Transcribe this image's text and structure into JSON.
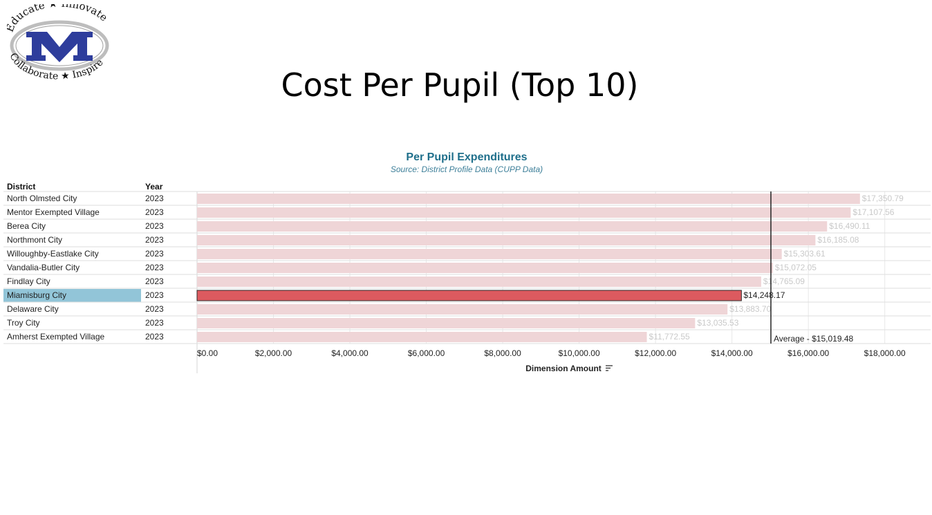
{
  "page": {
    "title": "Cost Per Pupil (Top 10)"
  },
  "logo": {
    "top_text": "Educate",
    "top_text2": "Innovate",
    "bottom_text": "Collaborate",
    "bottom_text2": "Inspire",
    "letter": "M",
    "colors": {
      "blue": "#2e3d9c",
      "gray": "#bdbdbd"
    }
  },
  "chart_data": {
    "type": "bar",
    "title": "Per Pupil Expenditures",
    "subtitle": "Source: District Profile Data (CUPP Data)",
    "column_headers": {
      "district": "District",
      "year": "Year"
    },
    "categories": [
      "North Olmsted City",
      "Mentor Exempted Village",
      "Berea City",
      "Northmont City",
      "Willoughby-Eastlake City",
      "Vandalia-Butler City",
      "Findlay City",
      "Miamisburg City",
      "Delaware City",
      "Troy City",
      "Amherst Exempted Village"
    ],
    "years": [
      "2023",
      "2023",
      "2023",
      "2023",
      "2023",
      "2023",
      "2023",
      "2023",
      "2023",
      "2023",
      "2023"
    ],
    "values": [
      17350.79,
      17107.56,
      16490.11,
      16185.08,
      15303.61,
      15072.05,
      14765.09,
      14248.17,
      13883.7,
      13035.53,
      11772.55
    ],
    "value_labels": [
      "$17,350.79",
      "$17,107.56",
      "$16,490.11",
      "$16,185.08",
      "$15,303.61",
      "$15,072.05",
      "$14,765.09",
      "$14,248.17",
      "$13,883.70",
      "$13,035.53",
      "$11,772.55"
    ],
    "highlighted": "Miamisburg City",
    "average": {
      "value": 15019.48,
      "label": "Average - $15,019.48"
    },
    "xticks": [
      0,
      2000,
      4000,
      6000,
      8000,
      10000,
      12000,
      14000,
      16000,
      18000
    ],
    "xtick_labels": [
      "$0.00",
      "$2,000.00",
      "$4,000.00",
      "$6,000.00",
      "$8,000.00",
      "$10,000.00",
      "$12,000.00",
      "$14,000.00",
      "$16,000.00",
      "$18,000.00"
    ],
    "xlim": [
      0,
      19200
    ],
    "xlabel": "Dimension Amount",
    "ylabel": "",
    "grid": true,
    "colors": {
      "bar": "#efd5d7",
      "bar_highlight": "#dc5a5f",
      "label_muted": "#c9c9c9",
      "label_highlight": "#222222",
      "row_highlight": "#92c5d8",
      "average_line": "#222222",
      "grid": "#e8e8e8"
    }
  }
}
